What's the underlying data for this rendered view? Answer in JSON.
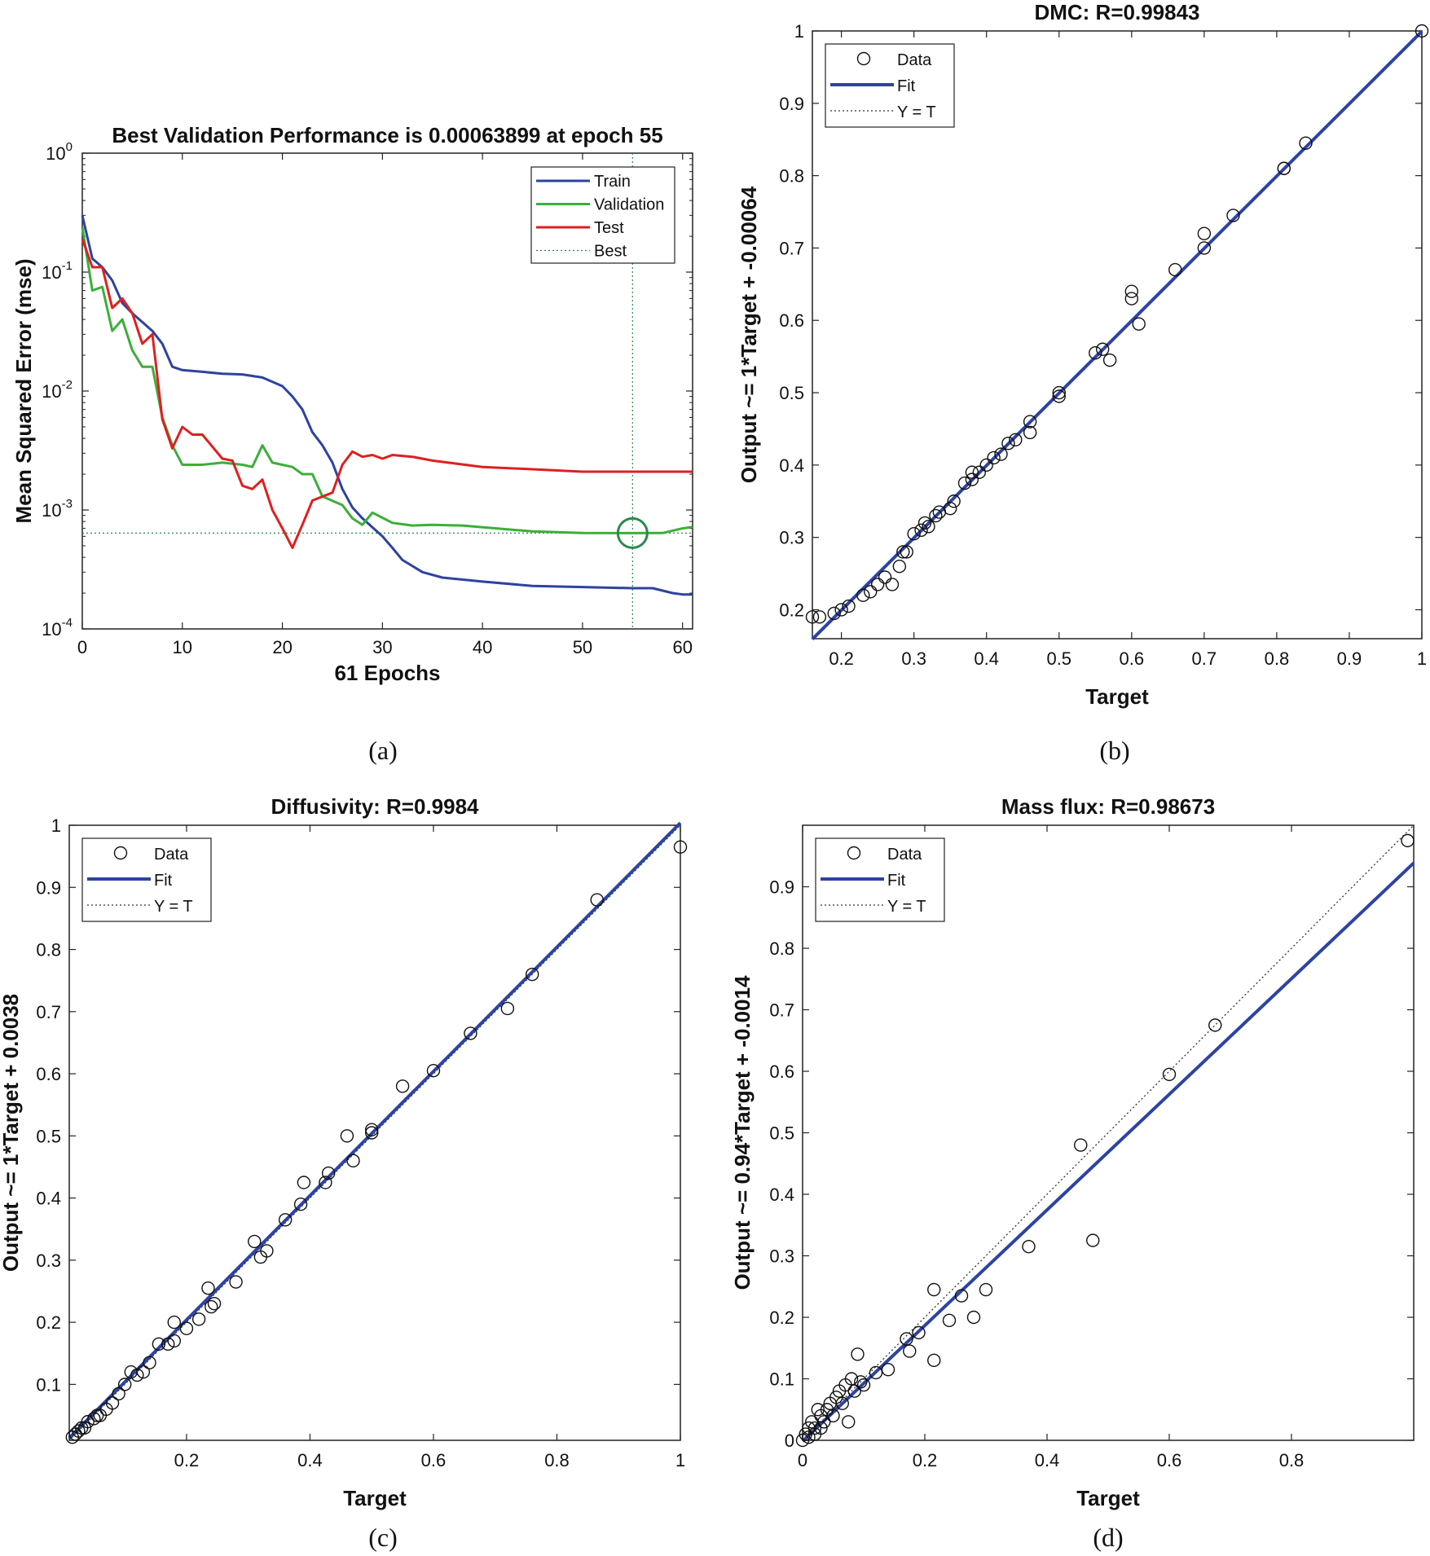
{
  "colors": {
    "train": "#2e43a0",
    "validation": "#3dae3a",
    "test": "#de2020",
    "fit": "#2e43a0",
    "best": "#2a8a4a",
    "marker": "#111111"
  },
  "figure": {
    "captions": [
      "(a)",
      "(b)",
      "(c)",
      "(d)"
    ]
  },
  "chart_data": [
    {
      "type": "line",
      "id": "performance",
      "title": "Best Validation Performance is 0.00063899 at epoch 55",
      "xlabel": "61 Epochs",
      "ylabel": "Mean Squared Error  (mse)",
      "yscale": "log",
      "xlim": [
        0,
        61
      ],
      "ylim": [
        0.0001,
        1
      ],
      "xticks": [
        "0",
        "10",
        "20",
        "30",
        "40",
        "50",
        "60"
      ],
      "yticks": [
        {
          "base": "10",
          "exp": "0"
        },
        {
          "base": "10",
          "exp": "-1"
        },
        {
          "base": "10",
          "exp": "-2"
        },
        {
          "base": "10",
          "exp": "-3"
        },
        {
          "base": "10",
          "exp": "-4"
        }
      ],
      "legend_position": "top-right",
      "legend": [
        "Train",
        "Validation",
        "Test",
        "Best"
      ],
      "best": {
        "epoch": 55,
        "value": 0.00063899
      },
      "series": [
        {
          "name": "Train",
          "x": [
            0,
            1,
            2,
            3,
            4,
            5,
            6,
            7,
            8,
            9,
            10,
            12,
            14,
            16,
            18,
            20,
            21,
            22,
            23,
            24,
            25,
            26,
            27,
            28,
            30,
            31,
            32,
            34,
            36,
            40,
            45,
            50,
            55,
            57,
            58,
            59,
            60,
            61
          ],
          "y": [
            0.3,
            0.13,
            0.11,
            0.085,
            0.055,
            0.045,
            0.038,
            0.032,
            0.025,
            0.016,
            0.015,
            0.0145,
            0.014,
            0.0138,
            0.013,
            0.011,
            0.009,
            0.007,
            0.0045,
            0.0035,
            0.0025,
            0.0015,
            0.00105,
            0.00085,
            0.0006,
            0.00048,
            0.00038,
            0.0003,
            0.00027,
            0.00025,
            0.00023,
            0.000225,
            0.00022,
            0.00022,
            0.00021,
            0.0002,
            0.000195,
            0.000195
          ]
        },
        {
          "name": "Validation",
          "x": [
            0,
            1,
            2,
            3,
            4,
            5,
            6,
            7,
            8,
            9,
            10,
            12,
            14,
            16,
            17,
            18,
            19,
            21,
            22,
            23,
            24,
            26,
            27,
            28,
            29,
            31,
            33,
            35,
            38,
            45,
            50,
            55,
            58,
            60,
            61
          ],
          "y": [
            0.24,
            0.07,
            0.075,
            0.032,
            0.04,
            0.022,
            0.016,
            0.016,
            0.006,
            0.0035,
            0.0024,
            0.0024,
            0.0025,
            0.0024,
            0.0023,
            0.0035,
            0.0025,
            0.0023,
            0.002,
            0.002,
            0.0013,
            0.0011,
            0.00085,
            0.00075,
            0.00095,
            0.00078,
            0.00074,
            0.00075,
            0.00074,
            0.00066,
            0.00064,
            0.00063899,
            0.00064,
            0.0007,
            0.00072
          ]
        },
        {
          "name": "Test",
          "x": [
            0,
            1,
            2,
            3,
            4,
            5,
            6,
            7,
            8,
            9,
            10,
            11,
            12,
            14,
            15,
            16,
            17,
            18,
            19,
            20,
            21,
            22,
            23,
            25,
            26,
            27,
            28,
            29,
            30,
            31,
            33,
            35,
            40,
            45,
            50,
            55,
            60,
            61
          ],
          "y": [
            0.19,
            0.11,
            0.11,
            0.05,
            0.06,
            0.045,
            0.025,
            0.03,
            0.0058,
            0.0033,
            0.005,
            0.0043,
            0.0043,
            0.0027,
            0.0026,
            0.0016,
            0.0015,
            0.0018,
            0.001,
            0.0007,
            0.00048,
            0.00075,
            0.0012,
            0.0014,
            0.0024,
            0.0031,
            0.0028,
            0.0029,
            0.0027,
            0.0029,
            0.0028,
            0.0026,
            0.0023,
            0.0022,
            0.0021,
            0.0021,
            0.0021,
            0.0021
          ]
        }
      ]
    },
    {
      "type": "scatter",
      "id": "dmc",
      "title": "DMC: R=0.99843",
      "xlabel": "Target",
      "ylabel": "Output ~= 1*Target + -0.00064",
      "xlim": [
        0.16,
        1
      ],
      "ylim": [
        0.16,
        1
      ],
      "xticks": [
        0.2,
        0.3,
        0.4,
        0.5,
        0.6,
        0.7,
        0.8,
        0.9,
        1
      ],
      "yticks": [
        0.2,
        0.3,
        0.4,
        0.5,
        0.6,
        0.7,
        0.8,
        0.9,
        1
      ],
      "xtick_labels": [
        "0.2",
        "0.3",
        "0.4",
        "0.5",
        "0.6",
        "0.7",
        "0.8",
        "0.9",
        "1"
      ],
      "ytick_labels": [
        "0.2",
        "0.3",
        "0.4",
        "0.5",
        "0.6",
        "0.7",
        "0.8",
        "0.9",
        "1"
      ],
      "fit": {
        "slope": 1,
        "intercept": -0.00064
      },
      "legend_position": "top-left",
      "legend": [
        "Data",
        "Fit",
        "Y = T"
      ],
      "points": [
        [
          0.16,
          0.19
        ],
        [
          0.17,
          0.19
        ],
        [
          0.19,
          0.195
        ],
        [
          0.2,
          0.2
        ],
        [
          0.21,
          0.205
        ],
        [
          0.23,
          0.22
        ],
        [
          0.24,
          0.225
        ],
        [
          0.25,
          0.235
        ],
        [
          0.26,
          0.245
        ],
        [
          0.27,
          0.235
        ],
        [
          0.28,
          0.26
        ],
        [
          0.285,
          0.28
        ],
        [
          0.29,
          0.28
        ],
        [
          0.3,
          0.305
        ],
        [
          0.31,
          0.31
        ],
        [
          0.315,
          0.32
        ],
        [
          0.32,
          0.315
        ],
        [
          0.33,
          0.33
        ],
        [
          0.335,
          0.335
        ],
        [
          0.35,
          0.34
        ],
        [
          0.355,
          0.35
        ],
        [
          0.37,
          0.375
        ],
        [
          0.38,
          0.39
        ],
        [
          0.38,
          0.38
        ],
        [
          0.39,
          0.39
        ],
        [
          0.4,
          0.4
        ],
        [
          0.41,
          0.41
        ],
        [
          0.42,
          0.415
        ],
        [
          0.43,
          0.43
        ],
        [
          0.44,
          0.435
        ],
        [
          0.46,
          0.445
        ],
        [
          0.46,
          0.46
        ],
        [
          0.5,
          0.5
        ],
        [
          0.5,
          0.495
        ],
        [
          0.55,
          0.555
        ],
        [
          0.56,
          0.56
        ],
        [
          0.57,
          0.545
        ],
        [
          0.6,
          0.64
        ],
        [
          0.6,
          0.63
        ],
        [
          0.61,
          0.595
        ],
        [
          0.66,
          0.67
        ],
        [
          0.7,
          0.7
        ],
        [
          0.7,
          0.72
        ],
        [
          0.74,
          0.745
        ],
        [
          0.81,
          0.81
        ],
        [
          0.81,
          0.81
        ],
        [
          0.84,
          0.845
        ],
        [
          1,
          1
        ]
      ]
    },
    {
      "type": "scatter",
      "id": "diffusivity",
      "title": "Diffusivity: R=0.9984",
      "xlabel": "Target",
      "ylabel": "Output ~= 1*Target + 0.0038",
      "xlim": [
        0.01,
        1
      ],
      "ylim": [
        0.01,
        1
      ],
      "xticks": [
        0.2,
        0.4,
        0.6,
        0.8,
        1
      ],
      "yticks": [
        0.1,
        0.2,
        0.3,
        0.4,
        0.5,
        0.6,
        0.7,
        0.8,
        0.9,
        1
      ],
      "xtick_labels": [
        "0.2",
        "0.4",
        "0.6",
        "0.8",
        "1"
      ],
      "ytick_labels": [
        "0.1",
        "0.2",
        "0.3",
        "0.4",
        "0.5",
        "0.6",
        "0.7",
        "0.8",
        "0.9",
        "1"
      ],
      "fit": {
        "slope": 1,
        "intercept": 0.0038
      },
      "legend_position": "top-left",
      "legend": [
        "Data",
        "Fit",
        "Y = T"
      ],
      "points": [
        [
          0.015,
          0.015
        ],
        [
          0.02,
          0.02
        ],
        [
          0.025,
          0.025
        ],
        [
          0.03,
          0.03
        ],
        [
          0.035,
          0.03
        ],
        [
          0.04,
          0.04
        ],
        [
          0.05,
          0.045
        ],
        [
          0.055,
          0.05
        ],
        [
          0.06,
          0.05
        ],
        [
          0.07,
          0.06
        ],
        [
          0.08,
          0.07
        ],
        [
          0.09,
          0.085
        ],
        [
          0.1,
          0.1
        ],
        [
          0.11,
          0.12
        ],
        [
          0.12,
          0.115
        ],
        [
          0.13,
          0.12
        ],
        [
          0.14,
          0.135
        ],
        [
          0.155,
          0.165
        ],
        [
          0.17,
          0.165
        ],
        [
          0.18,
          0.17
        ],
        [
          0.18,
          0.2
        ],
        [
          0.2,
          0.19
        ],
        [
          0.22,
          0.205
        ],
        [
          0.235,
          0.255
        ],
        [
          0.24,
          0.225
        ],
        [
          0.245,
          0.23
        ],
        [
          0.28,
          0.265
        ],
        [
          0.31,
          0.33
        ],
        [
          0.32,
          0.305
        ],
        [
          0.33,
          0.315
        ],
        [
          0.36,
          0.365
        ],
        [
          0.385,
          0.39
        ],
        [
          0.39,
          0.425
        ],
        [
          0.425,
          0.425
        ],
        [
          0.43,
          0.44
        ],
        [
          0.46,
          0.5
        ],
        [
          0.47,
          0.46
        ],
        [
          0.5,
          0.505
        ],
        [
          0.5,
          0.51
        ],
        [
          0.55,
          0.58
        ],
        [
          0.6,
          0.605
        ],
        [
          0.66,
          0.665
        ],
        [
          0.72,
          0.705
        ],
        [
          0.76,
          0.76
        ],
        [
          0.865,
          0.88
        ],
        [
          1,
          0.965
        ]
      ]
    },
    {
      "type": "scatter",
      "id": "massflux",
      "title": "Mass flux: R=0.98673",
      "xlabel": "Target",
      "ylabel": "Output ~= 0.94*Target + -0.0014",
      "xlim": [
        0,
        1
      ],
      "ylim": [
        0,
        1
      ],
      "xticks": [
        0,
        0.2,
        0.4,
        0.6,
        0.8
      ],
      "yticks": [
        0,
        0.1,
        0.2,
        0.3,
        0.4,
        0.5,
        0.6,
        0.7,
        0.8,
        0.9
      ],
      "xtick_labels": [
        "0",
        "0.2",
        "0.4",
        "0.6",
        "0.8"
      ],
      "ytick_labels": [
        "0",
        "0.1",
        "0.2",
        "0.3",
        "0.4",
        "0.5",
        "0.6",
        "0.7",
        "0.8",
        "0.9"
      ],
      "fit": {
        "slope": 0.94,
        "intercept": -0.0014
      },
      "legend_position": "top-left",
      "legend": [
        "Data",
        "Fit",
        "Y = T"
      ],
      "points": [
        [
          0,
          0
        ],
        [
          0.005,
          0.01
        ],
        [
          0.01,
          0.02
        ],
        [
          0.01,
          0.005
        ],
        [
          0.015,
          0.03
        ],
        [
          0.02,
          0.01
        ],
        [
          0.02,
          0.02
        ],
        [
          0.025,
          0.05
        ],
        [
          0.03,
          0.02
        ],
        [
          0.03,
          0.04
        ],
        [
          0.035,
          0.03
        ],
        [
          0.04,
          0.05
        ],
        [
          0.045,
          0.06
        ],
        [
          0.05,
          0.04
        ],
        [
          0.055,
          0.07
        ],
        [
          0.06,
          0.08
        ],
        [
          0.065,
          0.06
        ],
        [
          0.07,
          0.09
        ],
        [
          0.075,
          0.03
        ],
        [
          0.08,
          0.1
        ],
        [
          0.085,
          0.08
        ],
        [
          0.09,
          0.14
        ],
        [
          0.095,
          0.095
        ],
        [
          0.1,
          0.09
        ],
        [
          0.12,
          0.11
        ],
        [
          0.14,
          0.115
        ],
        [
          0.17,
          0.165
        ],
        [
          0.175,
          0.145
        ],
        [
          0.19,
          0.175
        ],
        [
          0.215,
          0.245
        ],
        [
          0.215,
          0.13
        ],
        [
          0.24,
          0.195
        ],
        [
          0.26,
          0.235
        ],
        [
          0.28,
          0.2
        ],
        [
          0.3,
          0.245
        ],
        [
          0.37,
          0.315
        ],
        [
          0.455,
          0.48
        ],
        [
          0.475,
          0.325
        ],
        [
          0.6,
          0.595
        ],
        [
          0.675,
          0.675
        ],
        [
          0.99,
          0.975
        ]
      ]
    }
  ]
}
